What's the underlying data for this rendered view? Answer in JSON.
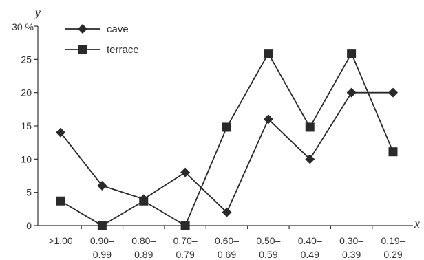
{
  "chart_data": {
    "type": "line",
    "xlabel": "x",
    "ylabel": "y",
    "y_top_label": "30 %",
    "ylim": [
      0,
      30
    ],
    "yticks": [
      0,
      5,
      10,
      15,
      20,
      25
    ],
    "categories": [
      [
        ">1.00"
      ],
      [
        "0.90–",
        "0.99"
      ],
      [
        "0.80–",
        "0.89"
      ],
      [
        "0.70–",
        "0.79"
      ],
      [
        "0.60–",
        "0.69"
      ],
      [
        "0.50–",
        "0.59"
      ],
      [
        "0.40–",
        "0.49"
      ],
      [
        "0.30–",
        "0.39"
      ],
      [
        "0.19–",
        "0.29"
      ]
    ],
    "series": [
      {
        "name": "cave",
        "marker": "diamond",
        "color": "#2a2a2a",
        "values": [
          14,
          6,
          4,
          8,
          2,
          16,
          10,
          20,
          20
        ]
      },
      {
        "name": "terrace",
        "marker": "square",
        "color": "#2a2a2a",
        "values": [
          3.7,
          0,
          3.7,
          0,
          14.8,
          25.9,
          14.8,
          25.9,
          11.1
        ]
      }
    ],
    "legend_position": "top-left",
    "grid": false
  }
}
